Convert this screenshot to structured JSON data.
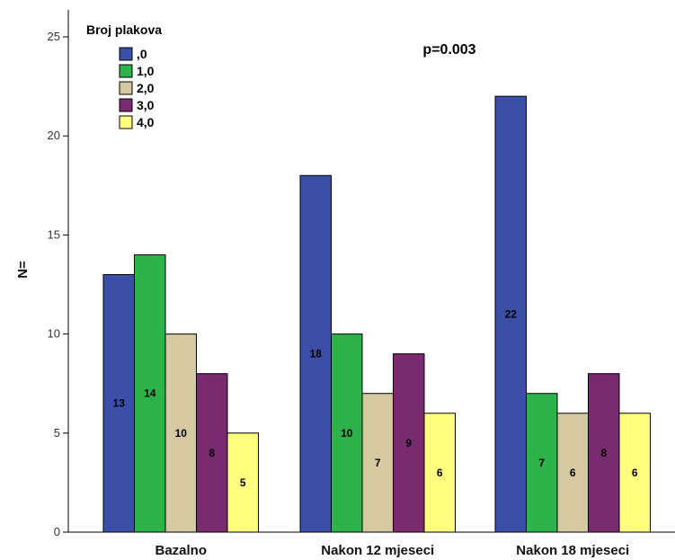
{
  "chart_data": {
    "type": "bar",
    "categories": [
      "Bazalno",
      "Nakon 12 mjeseci",
      "Nakon 18 mjeseci"
    ],
    "series": [
      {
        "name": ",0",
        "values": [
          13,
          18,
          22
        ],
        "color": "#3b4fa8"
      },
      {
        "name": "1,0",
        "values": [
          14,
          10,
          7
        ],
        "color": "#2eb34a"
      },
      {
        "name": "2,0",
        "values": [
          10,
          7,
          6
        ],
        "color": "#d4c9a0"
      },
      {
        "name": "3,0",
        "values": [
          8,
          9,
          8
        ],
        "color": "#7a2a6f"
      },
      {
        "name": "4,0",
        "values": [
          5,
          6,
          6
        ],
        "color": "#ffff80"
      }
    ],
    "legend_title": "Broj plakova",
    "legend_position": "top-left",
    "ylabel": "N=",
    "xlabel": "",
    "ylim": [
      0,
      25
    ],
    "yticks": [
      0,
      5,
      10,
      15,
      20,
      25
    ],
    "annotation": "p=0.003",
    "data_labels": true,
    "grid": false
  }
}
